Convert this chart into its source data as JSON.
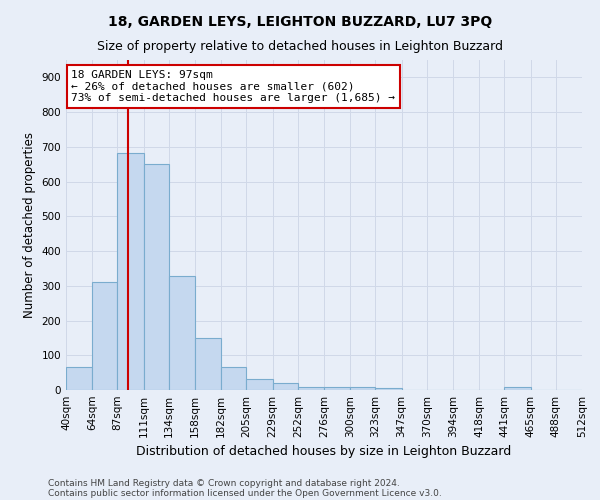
{
  "title": "18, GARDEN LEYS, LEIGHTON BUZZARD, LU7 3PQ",
  "subtitle": "Size of property relative to detached houses in Leighton Buzzard",
  "xlabel": "Distribution of detached houses by size in Leighton Buzzard",
  "ylabel": "Number of detached properties",
  "footnote1": "Contains HM Land Registry data © Crown copyright and database right 2024.",
  "footnote2": "Contains public sector information licensed under the Open Government Licence v3.0.",
  "bar_color": "#c5d8ef",
  "bar_edge_color": "#7aacce",
  "vline_color": "#cc0000",
  "vline_x": 97,
  "annotation_line1": "18 GARDEN LEYS: 97sqm",
  "annotation_line2": "← 26% of detached houses are smaller (602)",
  "annotation_line3": "73% of semi-detached houses are larger (1,685) →",
  "annotation_box_color": "#ffffff",
  "annotation_border_color": "#cc0000",
  "bin_edges": [
    40,
    64,
    87,
    111,
    134,
    158,
    182,
    205,
    229,
    252,
    276,
    300,
    323,
    347,
    370,
    394,
    418,
    441,
    465,
    488,
    512
  ],
  "bar_heights": [
    65,
    310,
    683,
    651,
    329,
    150,
    65,
    33,
    20,
    10,
    10,
    10,
    7,
    0,
    0,
    0,
    0,
    10,
    0,
    0
  ],
  "ylim": [
    0,
    950
  ],
  "yticks": [
    0,
    100,
    200,
    300,
    400,
    500,
    600,
    700,
    800,
    900
  ],
  "grid_color": "#d0d8e8",
  "background_color": "#e8eef8",
  "title_fontsize": 10,
  "subtitle_fontsize": 9,
  "tick_label_fontsize": 7.5,
  "ylabel_fontsize": 8.5,
  "xlabel_fontsize": 9,
  "footnote_fontsize": 6.5
}
